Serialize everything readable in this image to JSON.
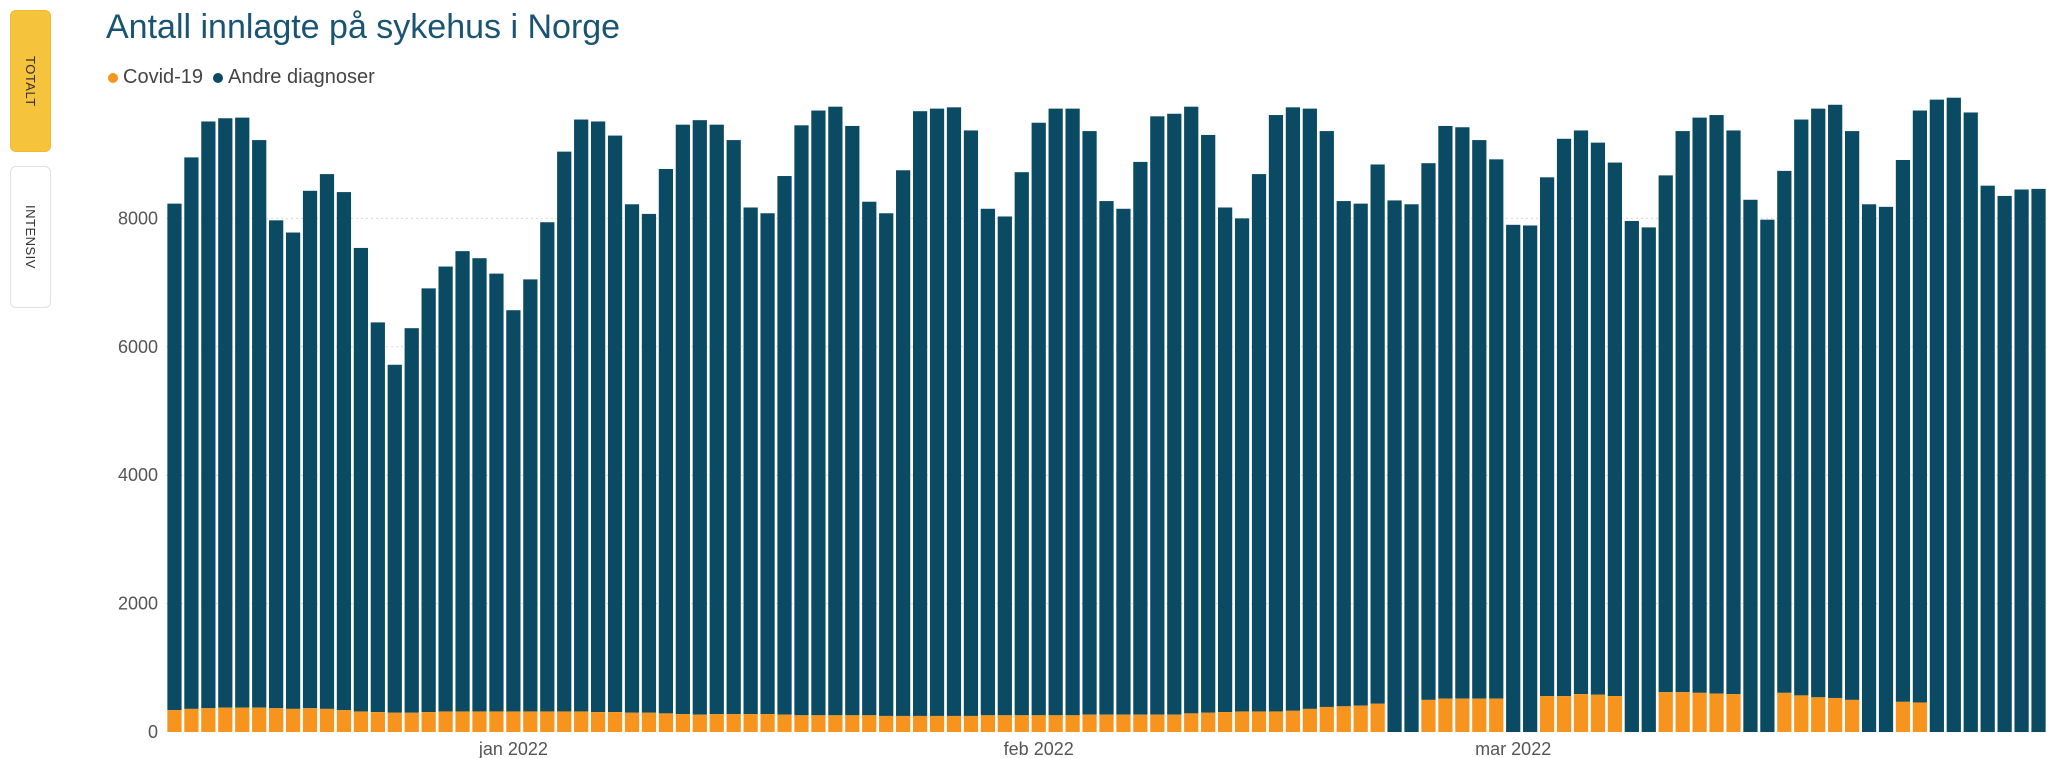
{
  "tabs": [
    {
      "label": "TOTALT",
      "active": true
    },
    {
      "label": "INTENSIV",
      "active": false
    }
  ],
  "colors": {
    "covid": "#f7941d",
    "other": "#0b4a63",
    "grid": "#d9d9d9",
    "accent": "#f6c33d"
  },
  "chart_data": {
    "type": "bar",
    "stacked": true,
    "title": "Antall innlagte på sykehus i Norge",
    "legend_position": "top-left",
    "ylim": [
      0,
      10000
    ],
    "y_ticks": [
      0,
      2000,
      4000,
      6000,
      8000
    ],
    "x_ticks": [
      {
        "label": "jan 2022",
        "index": 20
      },
      {
        "label": "feb 2022",
        "index": 51
      },
      {
        "label": "mar 2022",
        "index": 79
      }
    ],
    "series": [
      {
        "name": "Covid-19",
        "color": "#f7941d",
        "values": [
          340,
          360,
          370,
          380,
          380,
          380,
          370,
          360,
          370,
          360,
          340,
          320,
          310,
          300,
          300,
          310,
          320,
          320,
          320,
          320,
          320,
          320,
          320,
          320,
          320,
          310,
          310,
          300,
          300,
          290,
          280,
          270,
          280,
          280,
          280,
          280,
          270,
          260,
          260,
          260,
          260,
          260,
          250,
          250,
          250,
          250,
          250,
          250,
          260,
          260,
          260,
          260,
          260,
          260,
          270,
          270,
          270,
          270,
          270,
          270,
          290,
          300,
          310,
          320,
          320,
          320,
          330,
          360,
          390,
          400,
          410,
          440,
          0,
          0,
          500,
          520,
          520,
          520,
          520,
          0,
          0,
          560,
          560,
          590,
          580,
          560,
          0,
          0,
          620,
          620,
          610,
          600,
          590,
          0,
          0,
          610,
          570,
          540,
          530,
          500,
          0,
          0,
          470,
          460,
          0,
          0,
          0,
          0,
          0,
          0,
          0
        ]
      },
      {
        "name": "Andre diagnoser",
        "color": "#0b4a63",
        "values": [
          7890,
          8590,
          9140,
          9180,
          9190,
          8840,
          7600,
          7420,
          8060,
          8330,
          8070,
          7220,
          6070,
          5420,
          5990,
          6600,
          6930,
          7170,
          7060,
          6820,
          6250,
          6730,
          7620,
          8720,
          9220,
          9200,
          8980,
          7920,
          7770,
          8480,
          9180,
          9260,
          9180,
          8940,
          7890,
          7800,
          8390,
          9190,
          9420,
          9480,
          9180,
          8000,
          7830,
          8500,
          9420,
          9460,
          9480,
          9120,
          7890,
          7770,
          8460,
          9230,
          9450,
          9450,
          9090,
          8000,
          7880,
          8610,
          9320,
          9360,
          9450,
          9000,
          7860,
          7680,
          8370,
          9290,
          9400,
          9350,
          8970,
          7870,
          7820,
          8400,
          8280,
          8220,
          8360,
          8920,
          8900,
          8700,
          8400,
          7900,
          7890,
          8080,
          8680,
          8780,
          8600,
          8310,
          7960,
          7860,
          8050,
          8740,
          8960,
          9010,
          8780,
          8290,
          7980,
          8130,
          8970,
          9170,
          9240,
          8860,
          8220,
          8180,
          8440,
          9220,
          9850,
          9880,
          9650,
          8510,
          8350,
          8450,
          8460
        ]
      }
    ]
  }
}
